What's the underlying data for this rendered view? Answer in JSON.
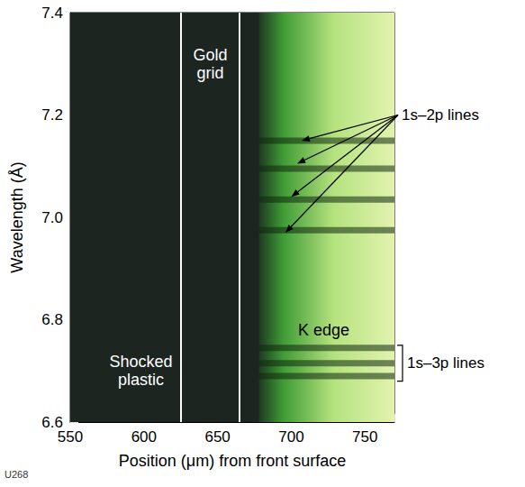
{
  "chart_data": {
    "type": "image",
    "x_label": "Position (μm) from front surface",
    "y_label": "Wavelength (Å)",
    "xlim": [
      550,
      770
    ],
    "xticks": [
      550,
      600,
      650,
      700,
      750
    ],
    "ylim": [
      6.6,
      7.4
    ],
    "yticks": [
      6.6,
      6.8,
      {
        "value": 7,
        "label": "7.0"
      },
      7.2,
      7.4
    ],
    "regions": [
      {
        "x": [
          550,
          770
        ],
        "color": "#1c2520"
      },
      {
        "x": [
          678,
          770
        ],
        "colors": [
          "#1d3a20",
          "#3f9c36",
          "#b5e27f",
          "#e2f3ae"
        ]
      }
    ],
    "gold_grid": {
      "label": "Gold grid",
      "x": [
        625,
        665
      ],
      "label_at": [
        645,
        7.3
      ]
    },
    "annotations": [
      {
        "text": "Shocked plastic",
        "at": [
          598,
          6.7
        ],
        "color": "#ffffff"
      },
      {
        "text": "K edge",
        "at": [
          722,
          6.78
        ],
        "color": "#000000"
      }
    ],
    "line_groups": [
      {
        "name": "1s–2p lines",
        "wavelengths": [
          7.15,
          7.095,
          7.035,
          6.975
        ],
        "arrow_tips": [
          [
            707,
            7.15
          ],
          [
            704,
            7.105
          ],
          [
            700,
            7.04
          ],
          [
            696,
            6.97
          ]
        ],
        "label_at": [
          770,
          7.2
        ]
      },
      {
        "name": "1s–3p lines",
        "wavelengths": [
          6.745,
          6.715,
          6.69
        ],
        "bracket": [
          6.68,
          6.75
        ]
      }
    ],
    "figure_id": "U268"
  }
}
